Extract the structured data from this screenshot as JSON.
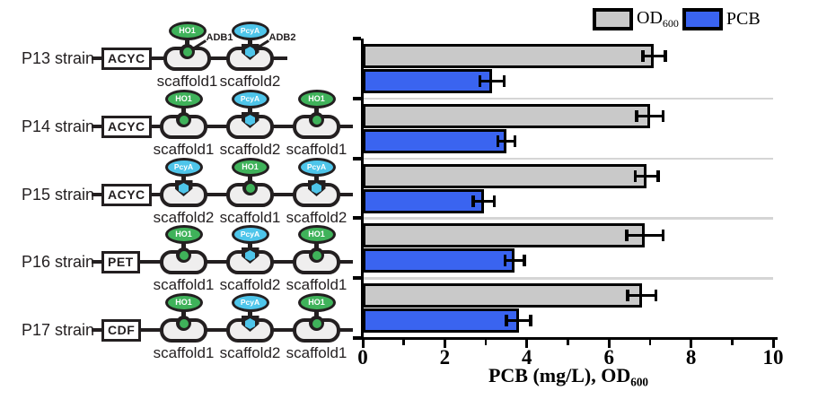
{
  "colors": {
    "ink": "#231f20",
    "od_bar": "#c9c9c9",
    "pcb_bar": "#3a64f0",
    "scaffold_fill": "#efeeee",
    "ho1_green": "#3fb25a",
    "pcya_cyan": "#4ec5ea",
    "separator": "#d5d5d5"
  },
  "legend": {
    "od_label": "OD",
    "od_sub": "600",
    "pcb_label": "PCB"
  },
  "axis": {
    "title": "PCB (mg/L), OD",
    "title_sub": "600",
    "major_ticks": [
      "0",
      "2",
      "4",
      "6",
      "8",
      "10"
    ],
    "minor_ticks": [
      1,
      3,
      5,
      7,
      9
    ],
    "range": [
      0,
      10
    ]
  },
  "strains": [
    {
      "name": "P13 strain",
      "plasmid": "ACYC",
      "scaffolds": [
        {
          "label": "scaffold1",
          "enzyme": "HO1",
          "adb": "ADB1"
        },
        {
          "label": "scaffold2",
          "enzyme": "PcyA",
          "adb": "ADB2"
        }
      ]
    },
    {
      "name": "P14 strain",
      "plasmid": "ACYC",
      "scaffolds": [
        {
          "label": "scaffold1",
          "enzyme": "HO1"
        },
        {
          "label": "scaffold2",
          "enzyme": "PcyA"
        },
        {
          "label": "scaffold1",
          "enzyme": "HO1"
        }
      ]
    },
    {
      "name": "P15 strain",
      "plasmid": "ACYC",
      "scaffolds": [
        {
          "label": "scaffold2",
          "enzyme": "PcyA"
        },
        {
          "label": "scaffold1",
          "enzyme": "HO1"
        },
        {
          "label": "scaffold2",
          "enzyme": "PcyA"
        }
      ]
    },
    {
      "name": "P16 strain",
      "plasmid": "PET",
      "scaffolds": [
        {
          "label": "scaffold1",
          "enzyme": "HO1"
        },
        {
          "label": "scaffold2",
          "enzyme": "PcyA"
        },
        {
          "label": "scaffold1",
          "enzyme": "HO1"
        }
      ]
    },
    {
      "name": "P17 strain",
      "plasmid": "CDF",
      "scaffolds": [
        {
          "label": "scaffold1",
          "enzyme": "HO1"
        },
        {
          "label": "scaffold2",
          "enzyme": "PcyA"
        },
        {
          "label": "scaffold1",
          "enzyme": "HO1"
        }
      ]
    }
  ],
  "chart_data": {
    "type": "bar",
    "orientation": "horizontal",
    "title": "",
    "xlabel": "PCB (mg/L), OD600",
    "xlim": [
      0,
      10
    ],
    "grid": false,
    "legend_position": "top-right",
    "group_separators": true,
    "categories": [
      "P13 strain",
      "P14 strain",
      "P15 strain",
      "P16 strain",
      "P17 strain"
    ],
    "series": [
      {
        "name": "OD600",
        "color": "#c9c9c9",
        "values": [
          7.1,
          7.0,
          6.92,
          6.88,
          6.8
        ],
        "errors": [
          0.28,
          0.33,
          0.28,
          0.45,
          0.35
        ]
      },
      {
        "name": "PCB",
        "color": "#3a64f0",
        "values": [
          3.15,
          3.5,
          2.95,
          3.7,
          3.8
        ],
        "errors": [
          0.3,
          0.21,
          0.26,
          0.24,
          0.3
        ]
      }
    ]
  }
}
